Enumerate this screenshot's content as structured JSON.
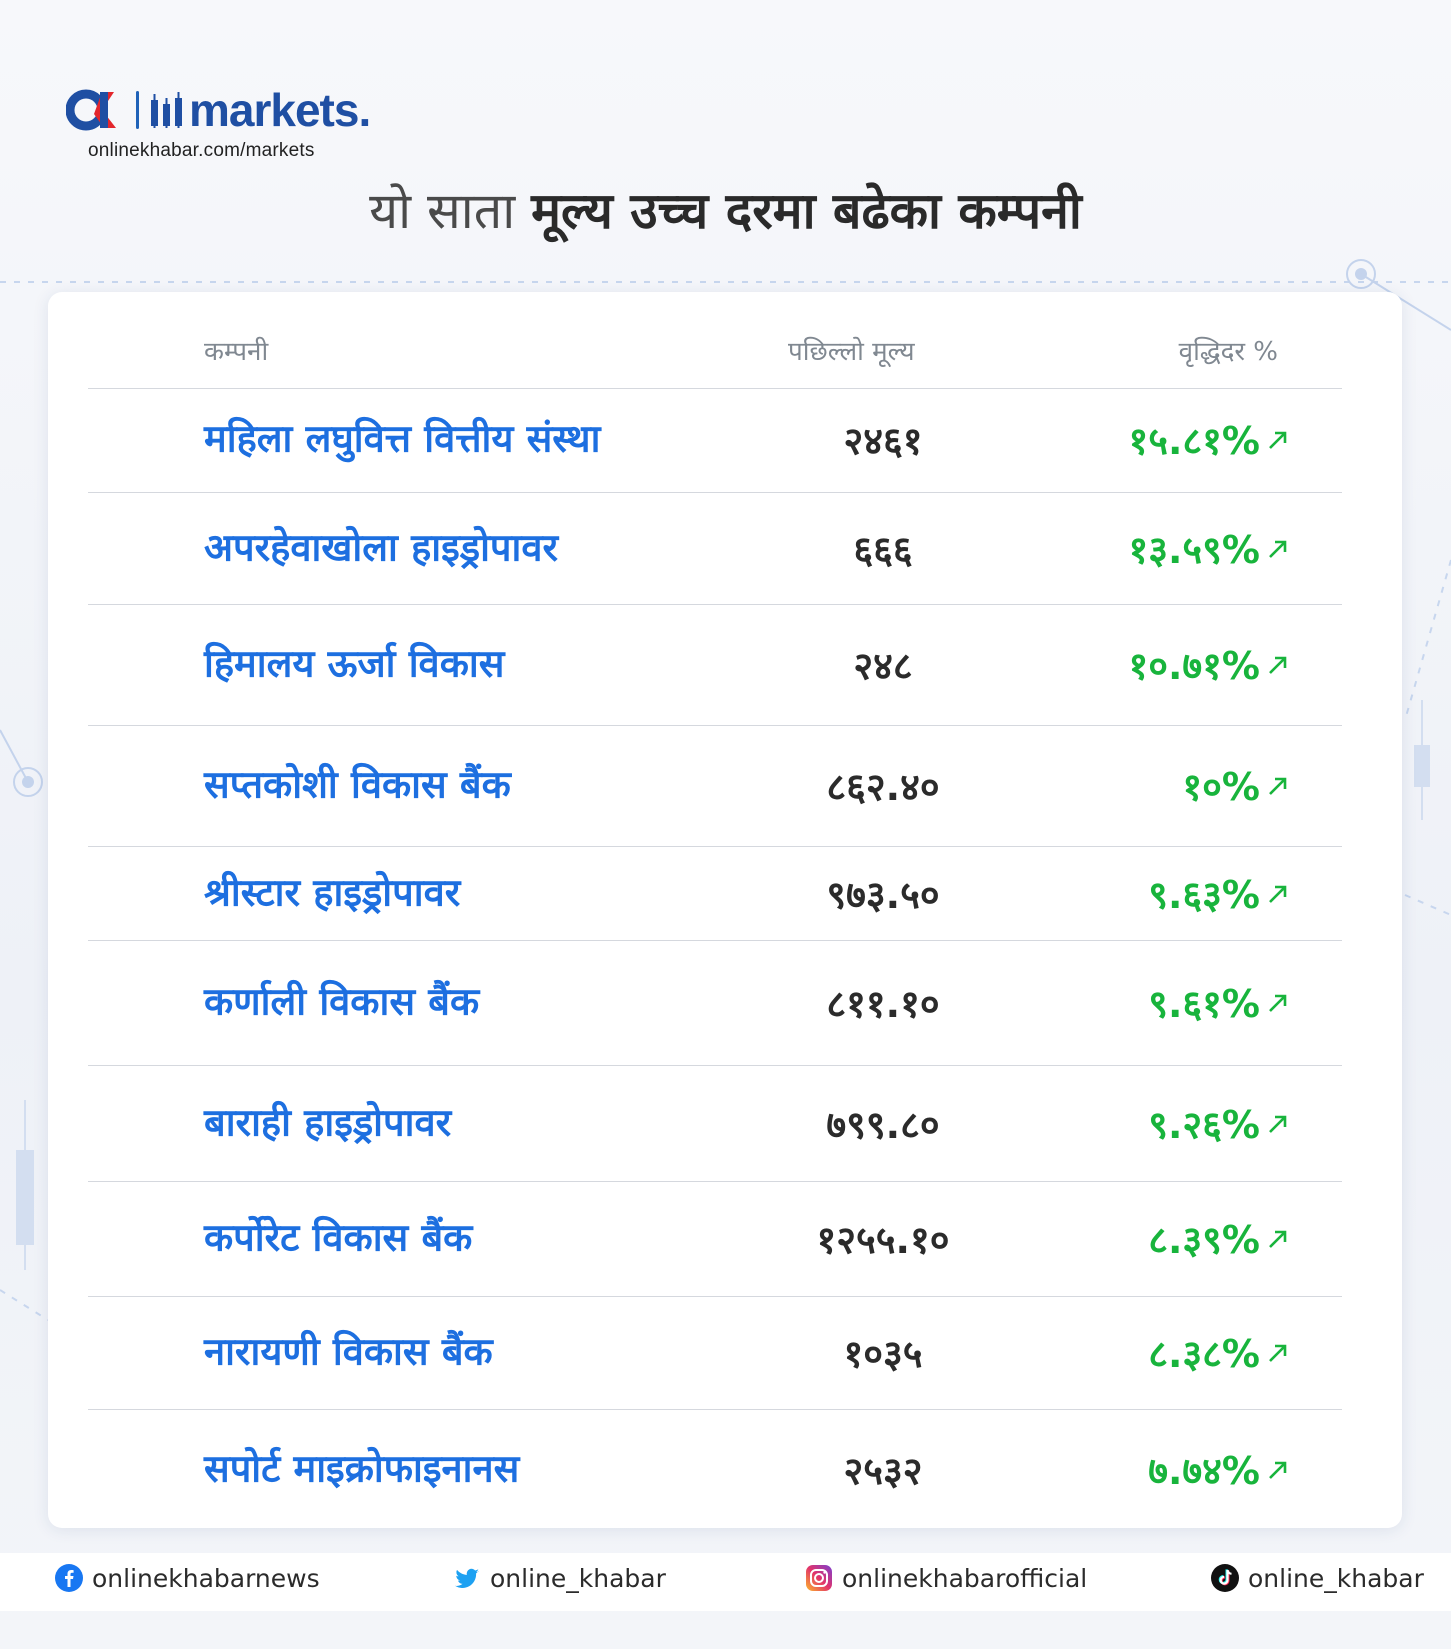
{
  "brand": {
    "logo_text": "markets.",
    "url": "onlinekhabar.com/markets"
  },
  "headline": {
    "light": "यो साता",
    "bold": "मूल्य उच्च दरमा बढेका कम्पनी"
  },
  "table": {
    "headers": {
      "company": "कम्पनी",
      "price": "पछिल्लो मूल्य",
      "change": "वृद्धिदर %"
    },
    "rows": [
      {
        "name": "महिला लघुवित्त वित्तीय संस्था",
        "price": "२४६१",
        "change": "१५.८१%"
      },
      {
        "name": "अपरहेवाखोला हाइड्रोपावर",
        "price": "६६६",
        "change": "१३.५९%"
      },
      {
        "name": "हिमालय ऊर्जा विकास",
        "price": "२४८",
        "change": "१०.७१%"
      },
      {
        "name": "सप्तकोशी विकास बैंक",
        "price": "८६२.४०",
        "change": "१०%"
      },
      {
        "name": "श्रीस्टार हाइड्रोपावर",
        "price": "९७३.५०",
        "change": "९.६३%"
      },
      {
        "name": "कर्णाली विकास बैंक",
        "price": "८११.१०",
        "change": "९.६१%"
      },
      {
        "name": "बाराही हाइड्रोपावर",
        "price": "७९९.८०",
        "change": "९.२६%"
      },
      {
        "name": "कर्पोरेट विकास बैंक",
        "price": "१२५५.१०",
        "change": "८.३९%"
      },
      {
        "name": "नारायणी विकास बैंक",
        "price": "१०३५",
        "change": "८.३८%"
      },
      {
        "name": "सपोर्ट माइक्रोफाइनानस",
        "price": "२५३२",
        "change": "७.७४%"
      }
    ]
  },
  "footer": {
    "facebook": "onlinekhabarnews",
    "twitter": "online_khabar",
    "instagram": "onlinekhabarofficial",
    "tiktok": "online_khabar"
  },
  "colors": {
    "name_blue": "#1d6fe0",
    "change_green": "#18b43c",
    "brand_blue": "#1f4fa3",
    "brand_red": "#e3262c"
  },
  "icons": [
    "up-right-arrow-icon",
    "facebook-icon",
    "twitter-icon",
    "instagram-icon",
    "tiktok-icon"
  ]
}
